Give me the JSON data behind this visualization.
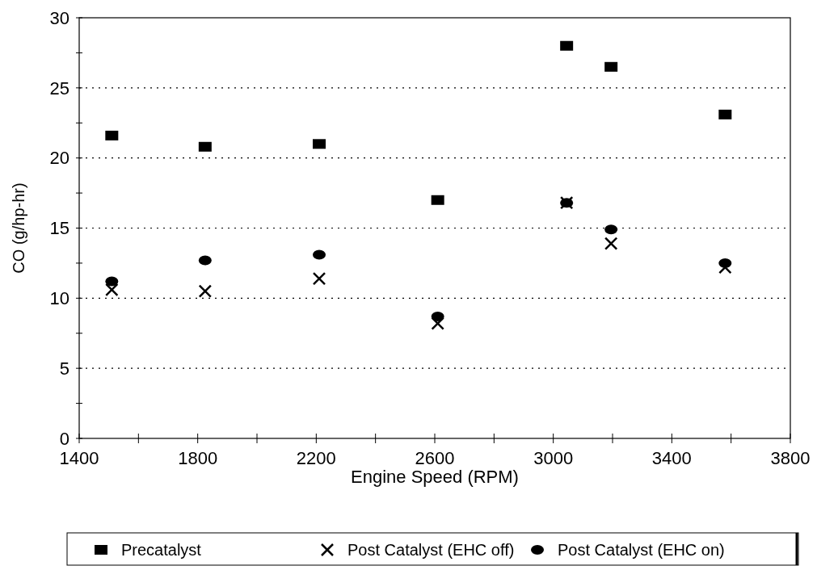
{
  "chart_data": {
    "type": "scatter",
    "xlabel": "Engine Speed (RPM)",
    "ylabel": "CO (g/hp-hr)",
    "xlim": [
      1400,
      3800
    ],
    "ylim": [
      0,
      30
    ],
    "xticks": [
      1400,
      {
        "value": 1600,
        "label": null
      },
      1800,
      {
        "value": 2000,
        "label": null
      },
      2200,
      {
        "value": 2400,
        "label": null
      },
      2600,
      {
        "value": 2800,
        "label": null
      },
      3000,
      {
        "value": 3200,
        "label": null
      },
      3400,
      {
        "value": 3600,
        "label": null
      },
      3800
    ],
    "yticks": [
      0,
      {
        "value": 2.5,
        "label": null
      },
      5,
      {
        "value": 7.5,
        "label": null
      },
      10,
      {
        "value": 12.5,
        "label": null
      },
      15,
      {
        "value": 17.5,
        "label": null
      },
      20,
      {
        "value": 22.5,
        "label": null
      },
      25,
      {
        "value": 27.5,
        "label": null
      },
      30
    ],
    "grid": "y",
    "legend": "bottom",
    "series": [
      {
        "name": "Precatalyst",
        "color": "#000000",
        "marker": "square",
        "x": [
          1510,
          1825,
          2210,
          2610,
          3045,
          3195,
          3580
        ],
        "values": [
          21.6,
          20.8,
          21.0,
          17.0,
          28.0,
          26.5,
          23.1
        ]
      },
      {
        "name": "Post Catalyst (EHC off)",
        "color": "#000000",
        "marker": "cross",
        "x": [
          1510,
          1825,
          2210,
          2610,
          3045,
          3195,
          3580
        ],
        "values": [
          10.6,
          10.5,
          11.4,
          8.2,
          16.8,
          13.9,
          12.2
        ]
      },
      {
        "name": "Post Catalyst (EHC on)",
        "color": "#000000",
        "marker": "circle",
        "x": [
          1510,
          1825,
          2210,
          2610,
          3045,
          3195,
          3580
        ],
        "values": [
          11.2,
          12.7,
          13.1,
          8.7,
          16.8,
          14.9,
          12.5
        ]
      }
    ]
  }
}
